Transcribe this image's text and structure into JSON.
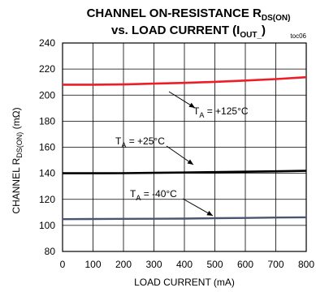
{
  "chart_data": {
    "type": "line",
    "title_line1": {
      "main": "CHANNEL ON-RESISTANCE R",
      "sub": "DS(ON)"
    },
    "title_line2": {
      "pre": "vs. LOAD CURRENT (I",
      "sub": "OUT_",
      "post": ")"
    },
    "code": "toc06",
    "xlabel": "LOAD CURRENT (mA)",
    "ylabel": {
      "pre": "CHANNEL R",
      "sub": "DS(ON)",
      "post": " (mΩ)"
    },
    "xlim": [
      0,
      800
    ],
    "ylim": [
      80,
      240
    ],
    "xticks": [
      0,
      100,
      200,
      300,
      400,
      500,
      600,
      700,
      800
    ],
    "yticks": [
      80,
      100,
      120,
      140,
      160,
      180,
      200,
      220,
      240
    ],
    "grid": true,
    "series": [
      {
        "name": "T_A = +125°C",
        "label_pre": "T",
        "label_sub": "A",
        "label_post": " = +125°C",
        "color": "#ee1c25",
        "x": [
          0,
          100,
          200,
          300,
          400,
          500,
          600,
          700,
          800
        ],
        "y": [
          208,
          208,
          208.2,
          208.8,
          209.4,
          210.2,
          211.2,
          212.3,
          213.7
        ]
      },
      {
        "name": "T_A = +25°C",
        "label_pre": "T",
        "label_sub": "A",
        "label_post": " = +25°C",
        "color": "#000000",
        "x": [
          0,
          100,
          200,
          300,
          400,
          500,
          600,
          700,
          800
        ],
        "y": [
          140,
          140,
          140.1,
          140.3,
          140.6,
          140.9,
          141.2,
          141.5,
          141.9
        ]
      },
      {
        "name": "T_A = -40°C",
        "label_pre": "T",
        "label_sub": "A",
        "label_post": " = -40°C",
        "color": "#4a5670",
        "x": [
          0,
          100,
          200,
          300,
          400,
          500,
          600,
          700,
          800
        ],
        "y": [
          104.8,
          104.9,
          105,
          105.1,
          105.2,
          105.5,
          105.7,
          106,
          106.2
        ]
      }
    ]
  }
}
